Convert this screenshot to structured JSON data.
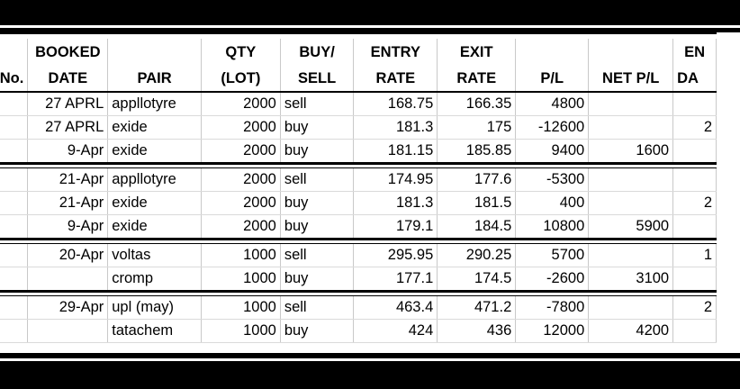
{
  "columns": [
    {
      "top": "",
      "bottom": "No."
    },
    {
      "top": "BOOKED",
      "bottom": "DATE"
    },
    {
      "top": "",
      "bottom": "PAIR"
    },
    {
      "top": "QTY",
      "bottom": "(LOT)"
    },
    {
      "top": "BUY/",
      "bottom": "SELL"
    },
    {
      "top": "ENTRY",
      "bottom": "RATE"
    },
    {
      "top": "EXIT",
      "bottom": "RATE"
    },
    {
      "top": "",
      "bottom": "P/L"
    },
    {
      "top": "",
      "bottom": "NET P/L"
    },
    {
      "top": "EN",
      "bottom": "DA"
    }
  ],
  "groups": [
    [
      {
        "no": "",
        "date": "27 APRL",
        "pair": "appllotyre",
        "qty": "2000",
        "side": "sell",
        "entry": "168.75",
        "exit": "166.35",
        "pl": "4800",
        "net": "",
        "extra": ""
      },
      {
        "no": "",
        "date": "27 APRL",
        "pair": "exide",
        "qty": "2000",
        "side": "buy",
        "entry": "181.3",
        "exit": "175",
        "pl": "-12600",
        "net": "",
        "extra": "2"
      },
      {
        "no": "",
        "date": "9-Apr",
        "pair": "exide",
        "qty": "2000",
        "side": "buy",
        "entry": "181.15",
        "exit": "185.85",
        "pl": "9400",
        "net": "1600",
        "extra": ""
      }
    ],
    [
      {
        "no": "",
        "date": "21-Apr",
        "pair": "appllotyre",
        "qty": "2000",
        "side": "sell",
        "entry": "174.95",
        "exit": "177.6",
        "pl": "-5300",
        "net": "",
        "extra": ""
      },
      {
        "no": "",
        "date": "21-Apr",
        "pair": "exide",
        "qty": "2000",
        "side": "buy",
        "entry": "181.3",
        "exit": "181.5",
        "pl": "400",
        "net": "",
        "extra": "2"
      },
      {
        "no": "",
        "date": "9-Apr",
        "pair": "exide",
        "qty": "2000",
        "side": "buy",
        "entry": "179.1",
        "exit": "184.5",
        "pl": "10800",
        "net": "5900",
        "extra": ""
      }
    ],
    [
      {
        "no": "",
        "date": "20-Apr",
        "pair": "voltas",
        "qty": "1000",
        "side": "sell",
        "entry": "295.95",
        "exit": "290.25",
        "pl": "5700",
        "net": "",
        "extra": "1"
      },
      {
        "no": "",
        "date": "",
        "pair": "cromp",
        "qty": "1000",
        "side": "buy",
        "entry": "177.1",
        "exit": "174.5",
        "pl": "-2600",
        "net": "3100",
        "extra": ""
      }
    ],
    [
      {
        "no": "",
        "date": "29-Apr",
        "pair": "upl (may)",
        "qty": "1000",
        "side": "sell",
        "entry": "463.4",
        "exit": "471.2",
        "pl": "-7800",
        "net": "",
        "extra": "2"
      },
      {
        "no": "",
        "date": "",
        "pair": "tatachem",
        "qty": "1000",
        "side": "buy",
        "entry": "424",
        "exit": "436",
        "pl": "12000",
        "net": "4200",
        "extra": ""
      }
    ]
  ]
}
